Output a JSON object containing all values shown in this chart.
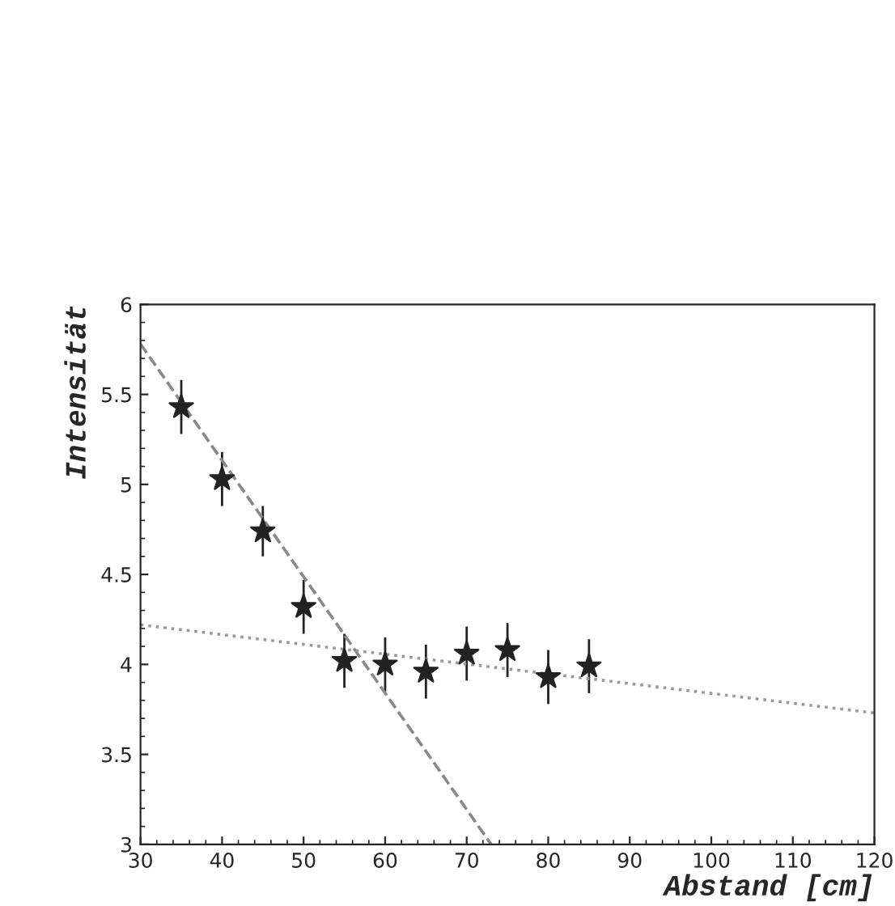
{
  "chart_data": {
    "type": "scatter",
    "xlabel": "Abstand [cm]",
    "ylabel": "Intensität",
    "xlim": [
      30,
      120
    ],
    "ylim": [
      3,
      6
    ],
    "xticks": [
      30,
      40,
      50,
      60,
      70,
      80,
      90,
      100,
      110,
      120
    ],
    "yticks": [
      3,
      {
        "value": 3.5,
        "label": "3.5"
      },
      4,
      {
        "value": 4.5,
        "label": "4.5"
      },
      5,
      {
        "value": 5.5,
        "label": "5.5"
      },
      6
    ],
    "grid": false,
    "legend": false,
    "series": [
      {
        "color": "#222222",
        "marker": "star",
        "x": [
          35,
          40,
          45,
          50,
          55,
          60,
          65,
          70,
          75,
          80,
          85
        ],
        "values": [
          5.43,
          5.03,
          4.74,
          4.32,
          4.02,
          4.0,
          3.96,
          4.06,
          4.08,
          3.93,
          3.99
        ],
        "errors": [
          0.15,
          0.15,
          0.14,
          0.15,
          0.15,
          0.15,
          0.15,
          0.15,
          0.15,
          0.15,
          0.15
        ]
      },
      {
        "type": "line",
        "color": "#888888",
        "line_style": "dashed",
        "x": [
          30,
          73
        ],
        "values": [
          5.78,
          3.0
        ]
      },
      {
        "type": "line",
        "color": "#999999",
        "line_style": "dotted",
        "x": [
          30,
          120
        ],
        "values": [
          4.22,
          3.73
        ]
      }
    ]
  }
}
